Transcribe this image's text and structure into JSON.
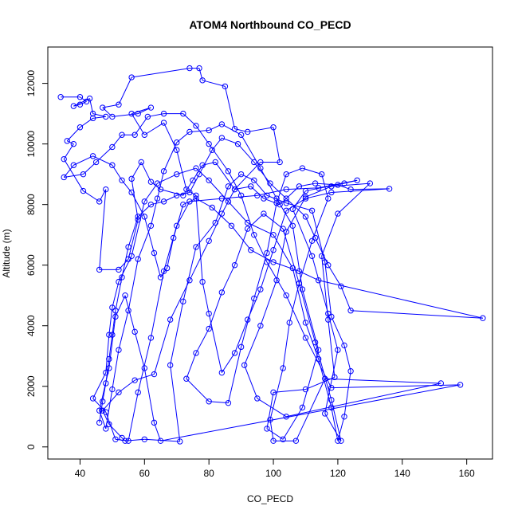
{
  "chart_data": {
    "type": "line",
    "marker": "open-circle",
    "color": "#0000ff",
    "title": "ATOM4 Northbound CO_PECD",
    "xlabel": "CO_PECD",
    "ylabel": "Altitude (m)",
    "xlim": [
      30,
      168
    ],
    "ylim": [
      -400,
      13200
    ],
    "xticks": [
      40,
      60,
      80,
      100,
      120,
      140,
      160
    ],
    "yticks": [
      0,
      2000,
      4000,
      6000,
      8000,
      10000,
      12000
    ],
    "grid": false,
    "legend": "none",
    "points": [
      [
        34,
        11550
      ],
      [
        40,
        11550
      ],
      [
        42,
        11400
      ],
      [
        40,
        11300
      ],
      [
        38,
        11250
      ],
      [
        43,
        11500
      ],
      [
        44,
        11000
      ],
      [
        48,
        10900
      ],
      [
        44,
        10850
      ],
      [
        40,
        10550
      ],
      [
        36,
        10100
      ],
      [
        38,
        10000
      ],
      [
        35,
        9500
      ],
      [
        41,
        8450
      ],
      [
        46,
        8100
      ],
      [
        48,
        8500
      ],
      [
        46,
        5850
      ],
      [
        52,
        5850
      ],
      [
        55,
        6200
      ],
      [
        58,
        7500
      ],
      [
        56,
        8850
      ],
      [
        59,
        9400
      ],
      [
        62,
        8750
      ],
      [
        65,
        8500
      ],
      [
        72,
        8300
      ],
      [
        75,
        8800
      ],
      [
        78,
        9300
      ],
      [
        82,
        9400
      ],
      [
        88,
        8500
      ],
      [
        93,
        8600
      ],
      [
        97,
        8200
      ],
      [
        102,
        8000
      ],
      [
        108,
        8600
      ],
      [
        113,
        8700
      ],
      [
        120,
        8650
      ],
      [
        124,
        8500
      ],
      [
        136,
        8520
      ],
      [
        118,
        8400
      ],
      [
        110,
        8200
      ],
      [
        104,
        7800
      ],
      [
        100,
        6500
      ],
      [
        96,
        5200
      ],
      [
        92,
        4200
      ],
      [
        88,
        3100
      ],
      [
        84,
        2450
      ],
      [
        80,
        4400
      ],
      [
        78,
        5450
      ],
      [
        76,
        8300
      ],
      [
        73,
        8500
      ],
      [
        70,
        9800
      ],
      [
        66,
        10700
      ],
      [
        60,
        10300
      ],
      [
        56,
        11000
      ],
      [
        62,
        11200
      ],
      [
        58,
        11000
      ],
      [
        50,
        10900
      ],
      [
        47,
        11200
      ],
      [
        52,
        11300
      ],
      [
        56,
        12200
      ],
      [
        74,
        12500
      ],
      [
        77,
        12500
      ],
      [
        78,
        12100
      ],
      [
        85,
        11900
      ],
      [
        88,
        10500
      ],
      [
        92,
        10400
      ],
      [
        100,
        10550
      ],
      [
        102,
        9400
      ],
      [
        96,
        9400
      ],
      [
        88,
        8500
      ],
      [
        84,
        7700
      ],
      [
        80,
        6800
      ],
      [
        74,
        5500
      ],
      [
        68,
        4200
      ],
      [
        63,
        2400
      ],
      [
        57,
        2200
      ],
      [
        52,
        1800
      ],
      [
        47,
        1200
      ],
      [
        49,
        750
      ],
      [
        53,
        300
      ],
      [
        54,
        200
      ],
      [
        60,
        250
      ],
      [
        71,
        180
      ],
      [
        68,
        2700
      ],
      [
        72,
        4800
      ],
      [
        76,
        6600
      ],
      [
        82,
        7400
      ],
      [
        86,
        8600
      ],
      [
        90,
        9000
      ],
      [
        94,
        8800
      ],
      [
        98,
        8300
      ],
      [
        104,
        8050
      ],
      [
        112,
        7800
      ],
      [
        116,
        6100
      ],
      [
        118,
        4300
      ],
      [
        122,
        3350
      ],
      [
        124,
        2500
      ],
      [
        122,
        1000
      ],
      [
        120,
        200
      ],
      [
        118,
        1300
      ],
      [
        114,
        2900
      ],
      [
        110,
        4100
      ],
      [
        106,
        5900
      ],
      [
        100,
        7000
      ],
      [
        92,
        7400
      ],
      [
        86,
        8100
      ],
      [
        80,
        8800
      ],
      [
        76,
        9200
      ],
      [
        70,
        9000
      ],
      [
        64,
        8700
      ],
      [
        60,
        8100
      ],
      [
        56,
        6300
      ],
      [
        52,
        5450
      ],
      [
        50,
        4600
      ],
      [
        49,
        3700
      ],
      [
        48,
        2450
      ],
      [
        44,
        1600
      ],
      [
        48,
        1150
      ],
      [
        51,
        250
      ],
      [
        55,
        200
      ],
      [
        58,
        1800
      ],
      [
        62,
        3600
      ],
      [
        66,
        5800
      ],
      [
        70,
        7300
      ],
      [
        74,
        8100
      ],
      [
        84,
        8200
      ],
      [
        95,
        8300
      ],
      [
        104,
        8500
      ],
      [
        114,
        8550
      ],
      [
        126,
        8800
      ],
      [
        122,
        8700
      ],
      [
        110,
        8450
      ],
      [
        106,
        7850
      ],
      [
        112,
        6300
      ],
      [
        117,
        4400
      ],
      [
        120,
        3200
      ],
      [
        116,
        1100
      ],
      [
        121,
        200
      ],
      [
        118,
        1550
      ],
      [
        113,
        3450
      ],
      [
        108,
        5400
      ],
      [
        103,
        7200
      ],
      [
        97,
        7700
      ],
      [
        92,
        7200
      ],
      [
        88,
        6000
      ],
      [
        84,
        5100
      ],
      [
        80,
        3900
      ],
      [
        76,
        3100
      ],
      [
        73,
        2250
      ],
      [
        80,
        1500
      ],
      [
        86,
        1450
      ],
      [
        90,
        3300
      ],
      [
        94,
        4900
      ],
      [
        98,
        6400
      ],
      [
        101,
        8050
      ],
      [
        104,
        9000
      ],
      [
        109,
        9200
      ],
      [
        115,
        9000
      ],
      [
        117,
        8200
      ],
      [
        112,
        6800
      ],
      [
        108,
        5400
      ],
      [
        105,
        4100
      ],
      [
        103,
        2600
      ],
      [
        99,
        900
      ],
      [
        100,
        200
      ],
      [
        107,
        200
      ],
      [
        116,
        2250
      ],
      [
        152,
        2100
      ],
      [
        104,
        1000
      ],
      [
        95,
        1600
      ],
      [
        91,
        2700
      ],
      [
        96,
        4000
      ],
      [
        101,
        5500
      ],
      [
        104,
        7100
      ],
      [
        110,
        8250
      ],
      [
        118,
        8600
      ],
      [
        130,
        8700
      ],
      [
        120,
        7700
      ],
      [
        115,
        6300
      ],
      [
        117,
        4200
      ],
      [
        119,
        2300
      ],
      [
        110,
        1900
      ],
      [
        100,
        1800
      ],
      [
        98,
        600
      ],
      [
        103,
        250
      ],
      [
        109,
        1300
      ],
      [
        114,
        3200
      ],
      [
        109,
        5200
      ],
      [
        106,
        7300
      ],
      [
        101,
        8200
      ],
      [
        96,
        9200
      ],
      [
        90,
        10300
      ],
      [
        84,
        10650
      ],
      [
        80,
        10450
      ],
      [
        74,
        10400
      ],
      [
        70,
        10050
      ],
      [
        66,
        9100
      ],
      [
        64,
        8200
      ],
      [
        62,
        7300
      ],
      [
        58,
        6200
      ],
      [
        55,
        4500
      ],
      [
        52,
        3200
      ],
      [
        50,
        1900
      ],
      [
        48,
        600
      ],
      [
        46,
        1200
      ],
      [
        49,
        2600
      ],
      [
        51,
        4300
      ],
      [
        54,
        5000
      ],
      [
        57,
        3800
      ],
      [
        60,
        2600
      ],
      [
        63,
        800
      ],
      [
        65,
        200
      ],
      [
        158,
        2050
      ],
      [
        118,
        1950
      ],
      [
        110,
        3600
      ],
      [
        104,
        5000
      ],
      [
        98,
        6100
      ],
      [
        94,
        7000
      ],
      [
        90,
        8300
      ],
      [
        86,
        9100
      ],
      [
        80,
        10000
      ],
      [
        76,
        10600
      ],
      [
        72,
        11000
      ],
      [
        66,
        11000
      ],
      [
        61,
        10900
      ],
      [
        57,
        10300
      ],
      [
        53,
        10300
      ],
      [
        50,
        9900
      ],
      [
        45,
        9400
      ],
      [
        41,
        9000
      ],
      [
        35,
        8900
      ],
      [
        38,
        9300
      ],
      [
        44,
        9600
      ],
      [
        50,
        9300
      ],
      [
        53,
        8800
      ],
      [
        56,
        8400
      ],
      [
        60,
        7600
      ],
      [
        63,
        6400
      ],
      [
        65,
        5600
      ],
      [
        67,
        5900
      ],
      [
        69,
        6900
      ],
      [
        72,
        8000
      ],
      [
        76,
        8200
      ],
      [
        81,
        7900
      ],
      [
        87,
        7300
      ],
      [
        93,
        6500
      ],
      [
        100,
        6100
      ],
      [
        108,
        5800
      ],
      [
        114,
        5500
      ],
      [
        165,
        4250
      ],
      [
        124,
        4500
      ],
      [
        121,
        5300
      ],
      [
        117,
        6000
      ],
      [
        113,
        6900
      ],
      [
        110,
        7600
      ],
      [
        104,
        8200
      ],
      [
        99,
        8700
      ],
      [
        94,
        9400
      ],
      [
        89,
        10000
      ],
      [
        84,
        10200
      ],
      [
        81,
        9800
      ],
      [
        77,
        9000
      ],
      [
        74,
        8400
      ],
      [
        70,
        8300
      ],
      [
        66,
        8100
      ],
      [
        62,
        8000
      ],
      [
        58,
        7600
      ],
      [
        55,
        6600
      ],
      [
        53,
        5600
      ],
      [
        51,
        4500
      ],
      [
        50,
        3700
      ],
      [
        49,
        2900
      ],
      [
        48,
        2100
      ],
      [
        47,
        1500
      ],
      [
        46,
        800
      ]
    ]
  }
}
